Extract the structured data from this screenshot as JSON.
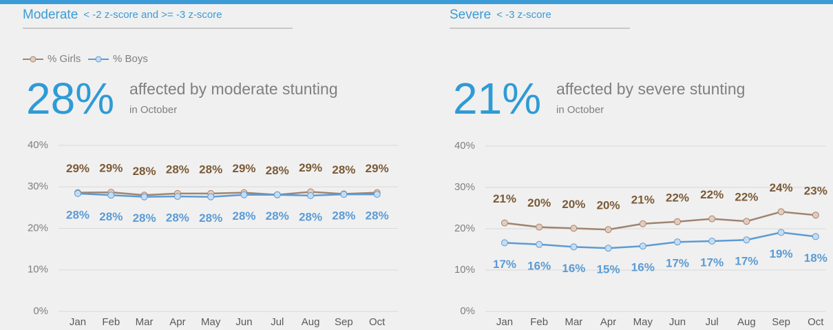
{
  "chart_data": [
    {
      "type": "line",
      "section_title": "Moderate",
      "criterion": "< -2 z-score and >= -3 z-score",
      "headline": "28%",
      "headline_text": "affected by moderate stunting",
      "headline_subtext": "in October",
      "legend": true,
      "categories": [
        "Jan",
        "Feb",
        "Mar",
        "Apr",
        "May",
        "Jun",
        "Jul",
        "Aug",
        "Sep",
        "Oct"
      ],
      "series": [
        {
          "name": "% Girls",
          "color": "#a08470",
          "marker_color": "#e6cbbb",
          "label_color": "#7b5a36",
          "values": [
            28.6,
            28.7,
            28.0,
            28.4,
            28.4,
            28.6,
            28.1,
            28.8,
            28.3,
            28.6
          ],
          "value_labels": [
            "29%",
            "29%",
            "28%",
            "28%",
            "28%",
            "29%",
            "28%",
            "29%",
            "28%",
            "29%"
          ]
        },
        {
          "name": "% Boys",
          "color": "#5b9bd5",
          "marker_color": "#c6dcf2",
          "label_color": "#5b9bd5",
          "values": [
            28.4,
            28.0,
            27.6,
            27.7,
            27.6,
            28.1,
            28.1,
            27.9,
            28.2,
            28.2
          ],
          "value_labels": [
            "28%",
            "28%",
            "28%",
            "28%",
            "28%",
            "28%",
            "28%",
            "28%",
            "28%",
            "28%"
          ]
        }
      ],
      "ylim": [
        0,
        40
      ],
      "yticks": [
        {
          "value": 0,
          "label": "0%"
        },
        {
          "value": 10,
          "label": "10%"
        },
        {
          "value": 20,
          "label": "20%"
        },
        {
          "value": 30,
          "label": "30%"
        },
        {
          "value": 40,
          "label": "40%"
        }
      ],
      "grid": true
    },
    {
      "type": "line",
      "section_title": "Severe",
      "criterion": "< -3 z-score",
      "headline": "21%",
      "headline_text": "affected by severe stunting",
      "headline_subtext": "in October",
      "legend": false,
      "categories": [
        "Jan",
        "Feb",
        "Mar",
        "Apr",
        "May",
        "Jun",
        "Jul",
        "Aug",
        "Sep",
        "Oct"
      ],
      "series": [
        {
          "name": "% Girls",
          "color": "#a08470",
          "marker_color": "#e6cbbb",
          "label_color": "#7b5a36",
          "values": [
            21.4,
            20.4,
            20.1,
            19.8,
            21.2,
            21.7,
            22.4,
            21.8,
            24.1,
            23.3
          ],
          "value_labels": [
            "21%",
            "20%",
            "20%",
            "20%",
            "21%",
            "22%",
            "22%",
            "22%",
            "24%",
            "23%"
          ]
        },
        {
          "name": "% Boys",
          "color": "#5b9bd5",
          "marker_color": "#c6dcf2",
          "label_color": "#5b9bd5",
          "values": [
            16.6,
            16.2,
            15.6,
            15.3,
            15.8,
            16.8,
            17.0,
            17.3,
            19.1,
            18.1
          ],
          "value_labels": [
            "17%",
            "16%",
            "16%",
            "15%",
            "16%",
            "17%",
            "17%",
            "17%",
            "19%",
            "18%"
          ]
        }
      ],
      "ylim": [
        0,
        40
      ],
      "yticks": [
        {
          "value": 0,
          "label": "0%"
        },
        {
          "value": 10,
          "label": "10%"
        },
        {
          "value": 20,
          "label": "20%"
        },
        {
          "value": 30,
          "label": "30%"
        },
        {
          "value": 40,
          "label": "40%"
        }
      ],
      "grid": true
    }
  ]
}
